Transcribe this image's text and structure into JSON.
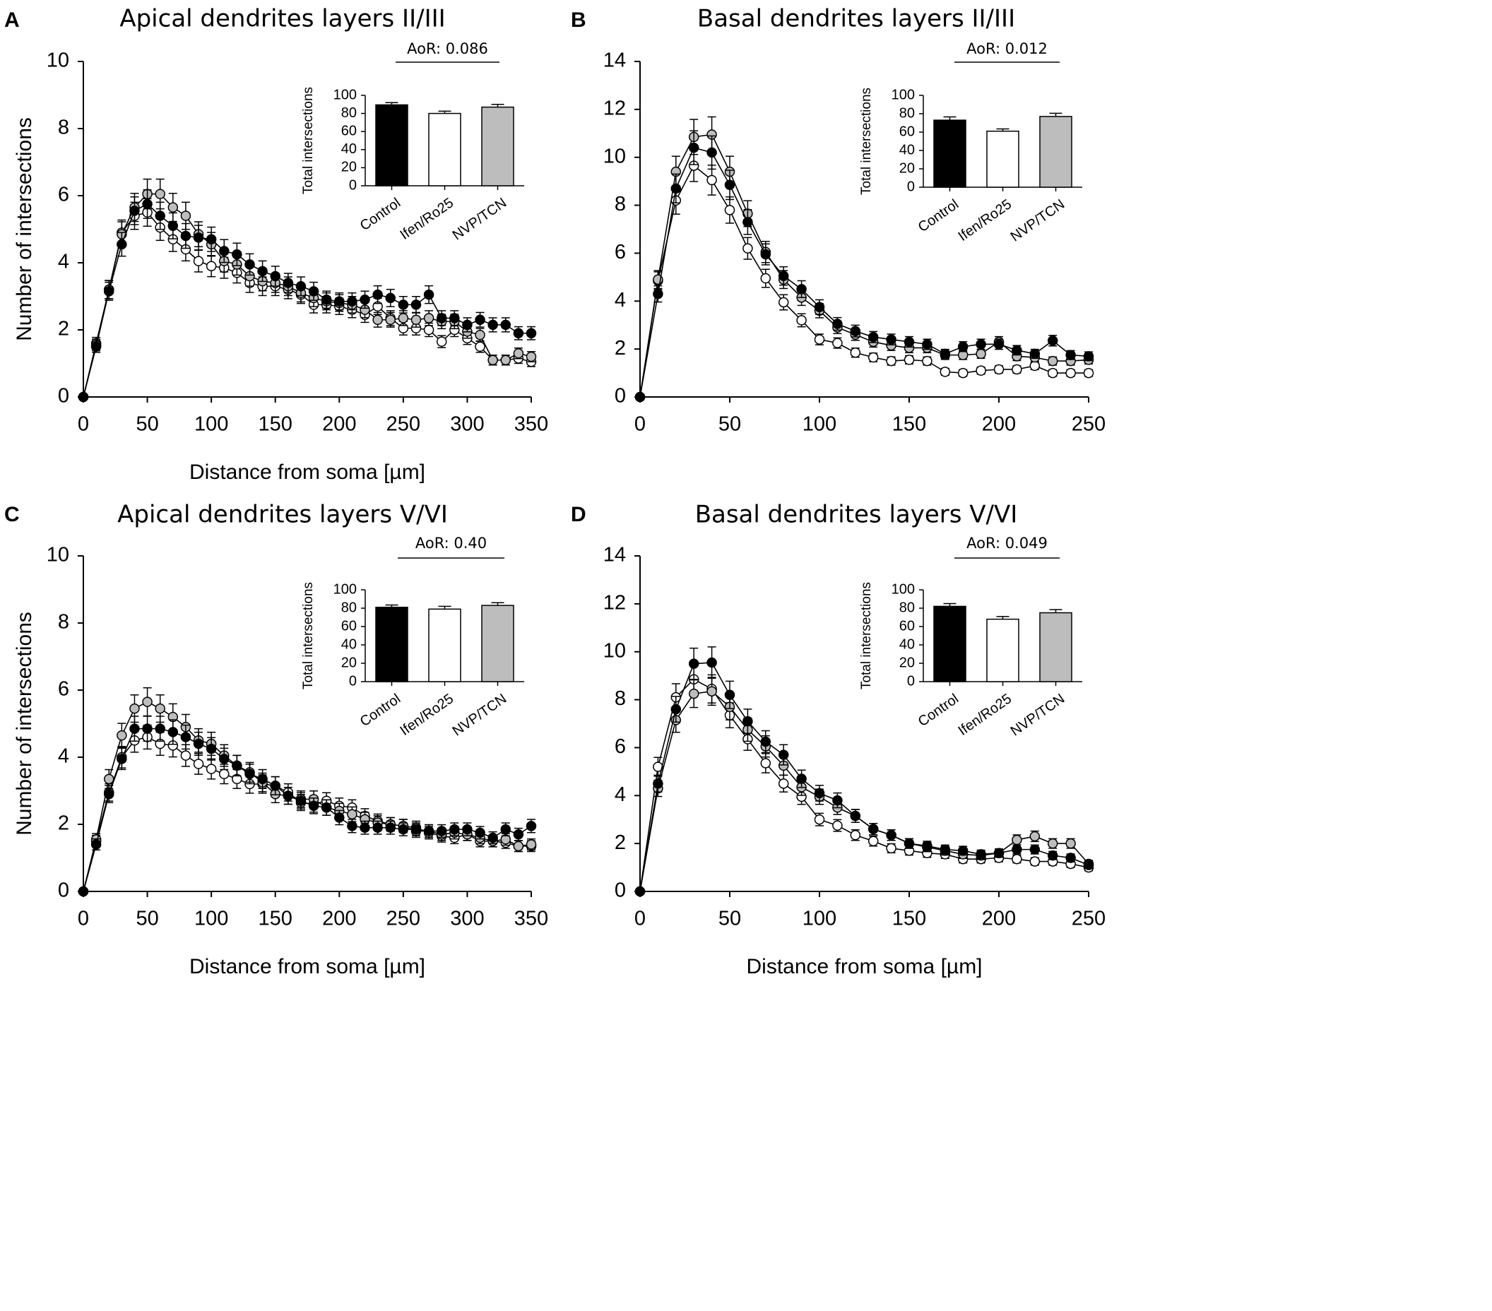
{
  "x_label": "Distance from soma [µm]",
  "y_label": "Number of intersections",
  "inset_ylabel": "Total intersections",
  "legend_groups": [
    "Control",
    "Ifen/Ro25",
    "NVP/TCN"
  ],
  "colors": {
    "control": "#000000",
    "ifen": "#ffffff",
    "nvp": "#bdbdbd",
    "axis": "#000000"
  },
  "chart_data": [
    {
      "type": "line",
      "panel": "A",
      "title": "Apical dendrites layers II/III",
      "xlabel": "Distance from soma [µm]",
      "ylabel": "Number of intersections",
      "xlim": [
        0,
        350
      ],
      "ylim": [
        0,
        10
      ],
      "xticks": [
        0,
        50,
        100,
        150,
        200,
        250,
        300,
        350
      ],
      "yticks": [
        0,
        2,
        4,
        6,
        8,
        10
      ],
      "x": [
        0,
        10,
        20,
        30,
        40,
        50,
        60,
        70,
        80,
        90,
        100,
        110,
        120,
        130,
        140,
        150,
        160,
        170,
        180,
        190,
        200,
        210,
        220,
        230,
        240,
        250,
        260,
        270,
        280,
        290,
        300,
        310,
        320,
        330,
        340,
        350
      ],
      "series": [
        {
          "name": "Control",
          "values": [
            0,
            1.5,
            3.15,
            4.55,
            5.55,
            5.75,
            5.4,
            5.1,
            4.8,
            4.75,
            4.7,
            4.35,
            4.25,
            3.95,
            3.75,
            3.6,
            3.4,
            3.3,
            3.15,
            2.9,
            2.85,
            2.85,
            2.9,
            3.05,
            2.95,
            2.75,
            2.75,
            3.05,
            2.35,
            2.35,
            2.15,
            2.3,
            2.15,
            2.15,
            1.9,
            1.9
          ]
        },
        {
          "name": "Ifen/Ro25",
          "values": [
            0,
            1.6,
            3.2,
            4.9,
            5.4,
            5.5,
            5.05,
            4.7,
            4.4,
            4.05,
            3.9,
            3.85,
            3.7,
            3.4,
            3.3,
            3.3,
            3.2,
            3.05,
            2.75,
            2.75,
            2.7,
            2.6,
            2.45,
            2.7,
            2.35,
            2.05,
            2.05,
            2.0,
            1.65,
            2.0,
            1.75,
            1.5,
            1.1,
            1.1,
            1.15,
            1.05
          ]
        },
        {
          "name": "NVP/TCN",
          "values": [
            0,
            1.55,
            3.2,
            4.85,
            5.65,
            6.05,
            6.05,
            5.65,
            5.4,
            4.85,
            4.55,
            4.05,
            3.95,
            3.6,
            3.45,
            3.4,
            3.3,
            3.1,
            2.95,
            2.85,
            2.8,
            2.75,
            2.6,
            2.3,
            2.3,
            2.35,
            2.3,
            2.35,
            2.25,
            2.25,
            1.95,
            1.85,
            1.1,
            1.1,
            1.3,
            1.2
          ]
        }
      ],
      "inset": {
        "type": "bar",
        "categories": [
          "Control",
          "Ifen/Ro25",
          "NVP/TCN"
        ],
        "values": [
          89.5,
          80,
          87
        ],
        "errors": [
          2.5,
          2.5,
          3
        ],
        "ylim": [
          0,
          100
        ],
        "yticks": [
          0,
          20,
          40,
          60,
          80,
          100
        ],
        "ylabel": "Total intersections",
        "stat_label": "AoR: 0.086"
      }
    },
    {
      "type": "line",
      "panel": "B",
      "title": "Basal dendrites layers II/III",
      "xlabel": "",
      "ylabel": "",
      "xlim": [
        0,
        250
      ],
      "ylim": [
        0,
        14
      ],
      "xticks": [
        0,
        50,
        100,
        150,
        200,
        250
      ],
      "yticks": [
        0,
        2,
        4,
        6,
        8,
        10,
        12,
        14
      ],
      "x": [
        0,
        10,
        20,
        30,
        40,
        50,
        60,
        70,
        80,
        90,
        100,
        110,
        120,
        130,
        140,
        150,
        160,
        170,
        180,
        190,
        200,
        210,
        220,
        230,
        240,
        250
      ],
      "series": [
        {
          "name": "Control",
          "values": [
            0,
            4.3,
            8.7,
            10.4,
            10.2,
            8.85,
            7.3,
            5.95,
            5.05,
            4.5,
            3.75,
            3.05,
            2.75,
            2.5,
            2.4,
            2.3,
            2.2,
            1.8,
            2.1,
            2.2,
            2.2,
            1.95,
            1.8,
            2.35,
            1.75,
            1.7
          ]
        },
        {
          "name": "Ifen/Ro25",
          "values": [
            0,
            4.85,
            8.2,
            9.65,
            9.05,
            7.8,
            6.2,
            4.95,
            3.95,
            3.2,
            2.4,
            2.25,
            1.85,
            1.65,
            1.5,
            1.55,
            1.5,
            1.05,
            1.0,
            1.1,
            1.15,
            1.15,
            1.3,
            1.0,
            1.0,
            1.0
          ]
        },
        {
          "name": "NVP/TCN",
          "values": [
            0,
            4.9,
            9.4,
            10.85,
            10.95,
            9.4,
            7.65,
            6.05,
            4.9,
            4.15,
            3.6,
            2.9,
            2.6,
            2.3,
            2.15,
            2.05,
            2.05,
            1.75,
            1.75,
            1.8,
            2.3,
            1.7,
            1.65,
            1.5,
            1.5,
            1.55
          ]
        }
      ],
      "inset": {
        "type": "bar",
        "categories": [
          "Control",
          "Ifen/Ro25",
          "NVP/TCN"
        ],
        "values": [
          73,
          61,
          77
        ],
        "errors": [
          3.5,
          2.5,
          3.5
        ],
        "ylim": [
          0,
          100
        ],
        "yticks": [
          0,
          20,
          40,
          60,
          80,
          100
        ],
        "ylabel": "Total intersections",
        "stat_label": "AoR: 0.012"
      }
    },
    {
      "type": "line",
      "panel": "C",
      "title": "Apical dendrites layers V/VI",
      "xlabel": "Distance from soma [µm]",
      "ylabel": "Number of intersections",
      "xlim": [
        0,
        350
      ],
      "ylim": [
        0,
        10
      ],
      "xticks": [
        0,
        50,
        100,
        150,
        200,
        250,
        300,
        350
      ],
      "yticks": [
        0,
        2,
        4,
        6,
        8,
        10
      ],
      "x": [
        0,
        10,
        20,
        30,
        40,
        50,
        60,
        70,
        80,
        90,
        100,
        110,
        120,
        130,
        140,
        150,
        160,
        170,
        180,
        190,
        200,
        210,
        220,
        230,
        240,
        250,
        260,
        270,
        280,
        290,
        300,
        310,
        320,
        330,
        340,
        350
      ],
      "series": [
        {
          "name": "Control",
          "values": [
            0,
            1.4,
            2.9,
            3.95,
            4.85,
            4.85,
            4.85,
            4.75,
            4.6,
            4.4,
            4.25,
            3.95,
            3.75,
            3.5,
            3.35,
            3.15,
            2.85,
            2.7,
            2.55,
            2.5,
            2.2,
            1.95,
            1.9,
            1.9,
            1.9,
            1.85,
            1.85,
            1.8,
            1.8,
            1.85,
            1.85,
            1.75,
            1.6,
            1.85,
            1.7,
            1.95
          ]
        },
        {
          "name": "Ifen/Ro25",
          "values": [
            0,
            1.5,
            2.95,
            4.0,
            4.5,
            4.6,
            4.4,
            4.35,
            4.05,
            3.8,
            3.65,
            3.5,
            3.35,
            3.2,
            3.2,
            3.15,
            2.95,
            2.65,
            2.6,
            2.7,
            2.55,
            2.5,
            2.25,
            2.1,
            2.0,
            1.95,
            1.9,
            1.75,
            1.65,
            1.6,
            1.7,
            1.5,
            1.5,
            1.45,
            1.35,
            1.35
          ]
        },
        {
          "name": "NVP/TCN",
          "values": [
            0,
            1.55,
            3.35,
            4.65,
            5.45,
            5.65,
            5.45,
            5.2,
            4.9,
            4.5,
            4.4,
            4.05,
            3.75,
            3.55,
            3.25,
            2.9,
            2.85,
            2.75,
            2.75,
            2.5,
            2.4,
            2.3,
            2.15,
            2.05,
            2.0,
            1.95,
            1.8,
            1.8,
            1.7,
            1.75,
            1.7,
            1.6,
            1.5,
            1.55,
            1.35,
            1.4
          ]
        }
      ],
      "inset": {
        "type": "bar",
        "categories": [
          "Control",
          "Ifen/Ro25",
          "NVP/TCN"
        ],
        "values": [
          81,
          79,
          83
        ],
        "errors": [
          2.5,
          3,
          3
        ],
        "ylim": [
          0,
          100
        ],
        "yticks": [
          0,
          20,
          40,
          60,
          80,
          100
        ],
        "ylabel": "Total intersections",
        "stat_label": "AoR: 0.40"
      }
    },
    {
      "type": "line",
      "panel": "D",
      "title": "Basal dendrites layers V/VI",
      "xlabel": "Distance from soma [µm]",
      "ylabel": "",
      "xlim": [
        0,
        250
      ],
      "ylim": [
        0,
        14
      ],
      "xticks": [
        0,
        50,
        100,
        150,
        200,
        250
      ],
      "yticks": [
        0,
        2,
        4,
        6,
        8,
        10,
        12,
        14
      ],
      "x": [
        0,
        10,
        20,
        30,
        40,
        50,
        60,
        70,
        80,
        90,
        100,
        110,
        120,
        130,
        140,
        150,
        160,
        170,
        180,
        190,
        200,
        210,
        220,
        230,
        240,
        250
      ],
      "series": [
        {
          "name": "Control",
          "values": [
            0,
            4.5,
            7.6,
            9.5,
            9.55,
            8.2,
            7.1,
            6.25,
            5.7,
            4.7,
            4.1,
            3.8,
            3.15,
            2.6,
            2.35,
            2.0,
            1.9,
            1.75,
            1.7,
            1.55,
            1.6,
            1.75,
            1.75,
            1.5,
            1.4,
            1.1
          ]
        },
        {
          "name": "Ifen/Ro25",
          "values": [
            0,
            5.2,
            8.1,
            8.85,
            8.45,
            7.35,
            6.35,
            5.35,
            4.5,
            3.95,
            3.0,
            2.75,
            2.35,
            2.1,
            1.8,
            1.7,
            1.6,
            1.55,
            1.35,
            1.35,
            1.4,
            1.35,
            1.25,
            1.25,
            1.15,
            1.0
          ]
        },
        {
          "name": "NVP/TCN",
          "values": [
            0,
            4.3,
            7.15,
            8.25,
            8.35,
            7.7,
            6.75,
            6.05,
            5.25,
            4.35,
            3.95,
            3.5,
            3.15,
            2.6,
            2.35,
            2.0,
            1.85,
            1.7,
            1.55,
            1.5,
            1.6,
            2.15,
            2.3,
            2.0,
            2.0,
            1.15
          ]
        }
      ],
      "inset": {
        "type": "bar",
        "categories": [
          "Control",
          "Ifen/Ro25",
          "NVP/TCN"
        ],
        "values": [
          82,
          68,
          75
        ],
        "errors": [
          3,
          3,
          3.5
        ],
        "ylim": [
          0,
          100
        ],
        "yticks": [
          0,
          20,
          40,
          60,
          80,
          100
        ],
        "ylabel": "Total intersections",
        "stat_label": "AoR: 0.049"
      }
    }
  ]
}
